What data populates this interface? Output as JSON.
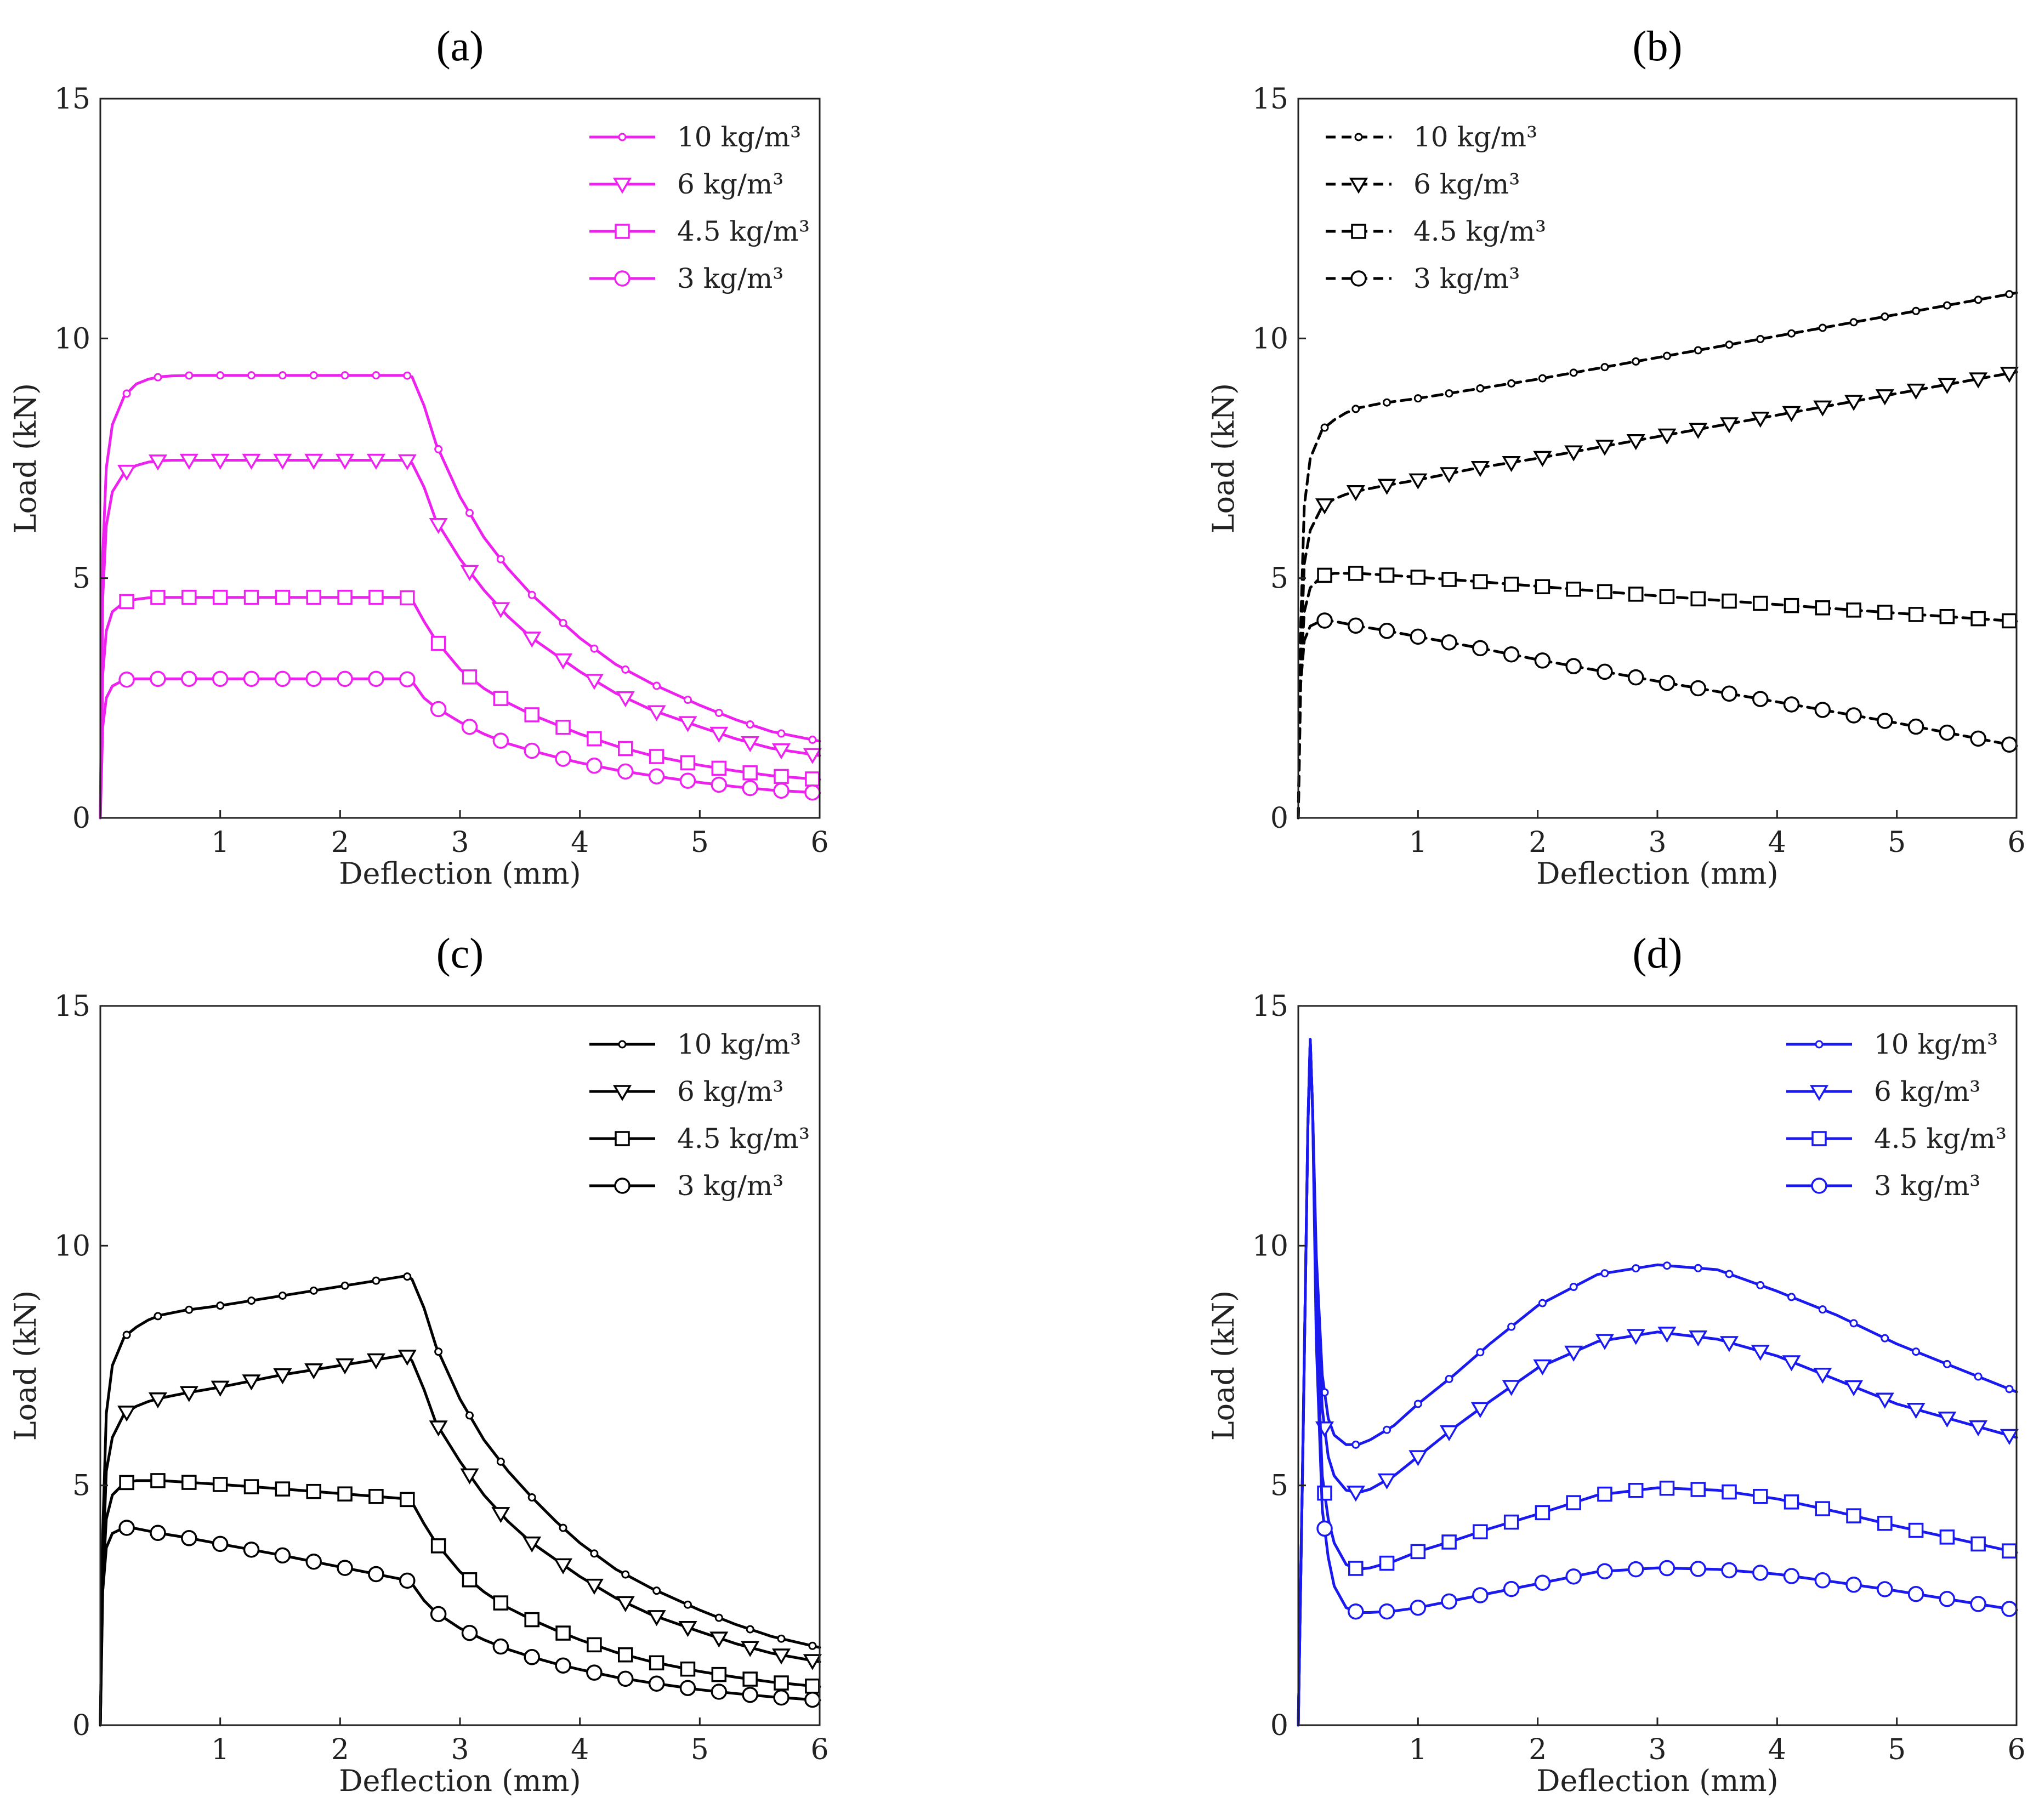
{
  "figure": {
    "panels": [
      "(a)",
      "(b)",
      "(c)",
      "(d)"
    ]
  },
  "chart_data": [
    {
      "type": "line",
      "panel_label": "(a)",
      "xlabel": "Deflection (mm)",
      "ylabel": "Load (kN)",
      "xlim": [
        0,
        6
      ],
      "ylim": [
        0,
        15
      ],
      "xticks": [
        "1",
        "2",
        "3",
        "4",
        "5",
        "6"
      ],
      "yticks": [
        "0",
        "5",
        "10",
        "15"
      ],
      "legend_position": "top-right",
      "color": "#ee22ee",
      "dashed": false,
      "series": [
        {
          "name": "10 kg/m³",
          "marker": "dot",
          "x": [
            0,
            0.02,
            0.05,
            0.1,
            0.2,
            0.3,
            0.4,
            0.5,
            0.6,
            0.8,
            1.0,
            1.5,
            2.0,
            2.5,
            2.55,
            2.6,
            2.7,
            2.8,
            3.0,
            3.2,
            3.4,
            3.6,
            3.8,
            4.0,
            4.3,
            4.6,
            5.0,
            5.3,
            5.6,
            6.0
          ],
          "y": [
            0,
            5.5,
            7.3,
            8.2,
            8.8,
            9.05,
            9.15,
            9.2,
            9.22,
            9.23,
            9.23,
            9.23,
            9.23,
            9.23,
            9.23,
            9.2,
            8.6,
            7.8,
            6.7,
            5.85,
            5.2,
            4.65,
            4.2,
            3.75,
            3.2,
            2.8,
            2.35,
            2.05,
            1.8,
            1.6
          ]
        },
        {
          "name": "6 kg/m³",
          "marker": "triangle-down",
          "x": [
            0,
            0.02,
            0.05,
            0.1,
            0.2,
            0.3,
            0.4,
            0.5,
            0.6,
            0.8,
            1.0,
            1.5,
            2.0,
            2.5,
            2.55,
            2.6,
            2.7,
            2.8,
            3.0,
            3.2,
            3.4,
            3.6,
            3.8,
            4.0,
            4.3,
            4.6,
            5.0,
            5.3,
            5.6,
            6.0
          ],
          "y": [
            0,
            4.6,
            6.1,
            6.8,
            7.2,
            7.35,
            7.42,
            7.45,
            7.46,
            7.46,
            7.46,
            7.46,
            7.46,
            7.46,
            7.46,
            7.4,
            6.9,
            6.2,
            5.4,
            4.75,
            4.2,
            3.75,
            3.4,
            3.05,
            2.6,
            2.25,
            1.9,
            1.65,
            1.45,
            1.3
          ]
        },
        {
          "name": "4.5 kg/m³",
          "marker": "square",
          "x": [
            0,
            0.02,
            0.05,
            0.1,
            0.2,
            0.3,
            0.4,
            0.5,
            0.6,
            0.8,
            1.0,
            1.5,
            2.0,
            2.5,
            2.55,
            2.6,
            2.7,
            2.8,
            3.0,
            3.2,
            3.4,
            3.6,
            3.8,
            4.0,
            4.3,
            4.6,
            5.0,
            5.3,
            5.6,
            6.0
          ],
          "y": [
            0,
            3.0,
            3.9,
            4.3,
            4.5,
            4.56,
            4.59,
            4.6,
            4.6,
            4.6,
            4.6,
            4.6,
            4.6,
            4.6,
            4.6,
            4.55,
            4.1,
            3.7,
            3.1,
            2.7,
            2.4,
            2.15,
            1.95,
            1.75,
            1.5,
            1.3,
            1.1,
            0.98,
            0.88,
            0.8
          ]
        },
        {
          "name": "3 kg/m³",
          "marker": "circle",
          "x": [
            0,
            0.02,
            0.05,
            0.1,
            0.2,
            0.3,
            0.4,
            0.5,
            0.6,
            0.8,
            1.0,
            1.5,
            2.0,
            2.5,
            2.55,
            2.6,
            2.7,
            2.8,
            3.0,
            3.2,
            3.4,
            3.6,
            3.8,
            4.0,
            4.3,
            4.6,
            5.0,
            5.3,
            5.6,
            6.0
          ],
          "y": [
            0,
            1.9,
            2.5,
            2.75,
            2.88,
            2.9,
            2.9,
            2.9,
            2.9,
            2.9,
            2.9,
            2.9,
            2.9,
            2.9,
            2.9,
            2.85,
            2.5,
            2.3,
            2.0,
            1.75,
            1.55,
            1.4,
            1.27,
            1.15,
            1.0,
            0.88,
            0.74,
            0.65,
            0.58,
            0.52
          ]
        }
      ]
    },
    {
      "type": "line",
      "panel_label": "(b)",
      "xlabel": "Deflection (mm)",
      "ylabel": "Load (kN)",
      "xlim": [
        0,
        6
      ],
      "ylim": [
        0,
        15
      ],
      "xticks": [
        "1",
        "2",
        "3",
        "4",
        "5",
        "6"
      ],
      "yticks": [
        "0",
        "5",
        "10",
        "15"
      ],
      "legend_position": "top-left",
      "color": "#000000",
      "dashed": true,
      "series": [
        {
          "name": "10 kg/m³",
          "marker": "dot",
          "x": [
            0,
            0.02,
            0.05,
            0.1,
            0.2,
            0.3,
            0.4,
            0.5,
            0.7,
            1.0,
            1.5,
            2.0,
            3.0,
            4.0,
            5.0,
            6.0
          ],
          "y": [
            0,
            4.0,
            6.5,
            7.5,
            8.1,
            8.3,
            8.45,
            8.55,
            8.65,
            8.75,
            8.95,
            9.15,
            9.6,
            10.05,
            10.5,
            10.95
          ]
        },
        {
          "name": "6 kg/m³",
          "marker": "triangle-down",
          "x": [
            0,
            0.02,
            0.05,
            0.1,
            0.2,
            0.3,
            0.4,
            0.5,
            0.7,
            1.0,
            1.5,
            2.0,
            3.0,
            4.0,
            5.0,
            6.0
          ],
          "y": [
            0,
            3.3,
            5.3,
            6.0,
            6.5,
            6.65,
            6.75,
            6.82,
            6.92,
            7.05,
            7.3,
            7.5,
            7.95,
            8.4,
            8.85,
            9.3
          ]
        },
        {
          "name": "4.5 kg/m³",
          "marker": "square",
          "x": [
            0,
            0.02,
            0.05,
            0.1,
            0.2,
            0.3,
            0.4,
            0.5,
            0.7,
            1.0,
            1.5,
            2.0,
            3.0,
            4.0,
            5.0,
            6.0
          ],
          "y": [
            0,
            3.0,
            4.3,
            4.8,
            5.05,
            5.1,
            5.1,
            5.1,
            5.07,
            5.02,
            4.93,
            4.83,
            4.63,
            4.45,
            4.27,
            4.1
          ]
        },
        {
          "name": "3 kg/m³",
          "marker": "circle",
          "x": [
            0,
            0.02,
            0.05,
            0.1,
            0.2,
            0.3,
            0.4,
            0.5,
            0.7,
            1.0,
            1.5,
            2.0,
            3.0,
            4.0,
            5.0,
            6.0
          ],
          "y": [
            0,
            2.8,
            3.7,
            4.0,
            4.12,
            4.1,
            4.05,
            4.0,
            3.92,
            3.78,
            3.55,
            3.3,
            2.85,
            2.42,
            1.98,
            1.5
          ]
        }
      ]
    },
    {
      "type": "line",
      "panel_label": "(c)",
      "xlabel": "Deflection (mm)",
      "ylabel": "Load (kN)",
      "xlim": [
        0,
        6
      ],
      "ylim": [
        0,
        15
      ],
      "xticks": [
        "1",
        "2",
        "3",
        "4",
        "5",
        "6"
      ],
      "yticks": [
        "0",
        "5",
        "10",
        "15"
      ],
      "legend_position": "top-right",
      "color": "#000000",
      "dashed": false,
      "series": [
        {
          "name": "10 kg/m³",
          "marker": "dot",
          "x": [
            0,
            0.02,
            0.05,
            0.1,
            0.2,
            0.3,
            0.4,
            0.5,
            0.7,
            1.0,
            1.5,
            2.0,
            2.5,
            2.55,
            2.6,
            2.7,
            2.8,
            3.0,
            3.2,
            3.4,
            3.6,
            3.8,
            4.0,
            4.3,
            4.6,
            5.0,
            5.3,
            5.6,
            6.0
          ],
          "y": [
            0,
            4.0,
            6.5,
            7.5,
            8.1,
            8.3,
            8.45,
            8.55,
            8.65,
            8.75,
            8.95,
            9.15,
            9.35,
            9.37,
            9.3,
            8.7,
            7.9,
            6.8,
            5.95,
            5.3,
            4.75,
            4.25,
            3.8,
            3.25,
            2.85,
            2.4,
            2.1,
            1.85,
            1.62
          ]
        },
        {
          "name": "6 kg/m³",
          "marker": "triangle-down",
          "x": [
            0,
            0.02,
            0.05,
            0.1,
            0.2,
            0.3,
            0.4,
            0.5,
            0.7,
            1.0,
            1.5,
            2.0,
            2.5,
            2.55,
            2.6,
            2.7,
            2.8,
            3.0,
            3.2,
            3.4,
            3.6,
            3.8,
            4.0,
            4.3,
            4.6,
            5.0,
            5.3,
            5.6,
            6.0
          ],
          "y": [
            0,
            3.3,
            5.3,
            6.0,
            6.5,
            6.65,
            6.75,
            6.82,
            6.92,
            7.05,
            7.3,
            7.5,
            7.7,
            7.72,
            7.6,
            7.0,
            6.3,
            5.5,
            4.8,
            4.25,
            3.8,
            3.45,
            3.1,
            2.65,
            2.3,
            1.95,
            1.7,
            1.5,
            1.32
          ]
        },
        {
          "name": "4.5 kg/m³",
          "marker": "square",
          "x": [
            0,
            0.02,
            0.05,
            0.1,
            0.2,
            0.3,
            0.4,
            0.5,
            0.7,
            1.0,
            1.5,
            2.0,
            2.5,
            2.55,
            2.6,
            2.7,
            2.8,
            3.0,
            3.2,
            3.4,
            3.6,
            3.8,
            4.0,
            4.3,
            4.6,
            5.0,
            5.3,
            5.6,
            6.0
          ],
          "y": [
            0,
            3.0,
            4.3,
            4.8,
            5.05,
            5.1,
            5.1,
            5.1,
            5.07,
            5.02,
            4.93,
            4.83,
            4.73,
            4.72,
            4.65,
            4.2,
            3.8,
            3.2,
            2.78,
            2.45,
            2.2,
            1.98,
            1.78,
            1.52,
            1.32,
            1.12,
            1.0,
            0.9,
            0.8
          ]
        },
        {
          "name": "3 kg/m³",
          "marker": "circle",
          "x": [
            0,
            0.02,
            0.05,
            0.1,
            0.2,
            0.3,
            0.4,
            0.5,
            0.7,
            1.0,
            1.5,
            2.0,
            2.5,
            2.55,
            2.6,
            2.7,
            2.8,
            3.0,
            3.2,
            3.4,
            3.6,
            3.8,
            4.0,
            4.3,
            4.6,
            5.0,
            5.3,
            5.6,
            6.0
          ],
          "y": [
            0,
            2.8,
            3.7,
            4.0,
            4.12,
            4.1,
            4.05,
            4.0,
            3.92,
            3.78,
            3.55,
            3.3,
            3.05,
            3.03,
            2.95,
            2.6,
            2.35,
            2.02,
            1.78,
            1.58,
            1.42,
            1.28,
            1.16,
            1.0,
            0.88,
            0.74,
            0.66,
            0.59,
            0.52
          ]
        }
      ]
    },
    {
      "type": "line",
      "panel_label": "(d)",
      "xlabel": "Deflection (mm)",
      "ylabel": "Load (kN)",
      "xlim": [
        0,
        6
      ],
      "ylim": [
        0,
        15
      ],
      "xticks": [
        "1",
        "2",
        "3",
        "4",
        "5",
        "6"
      ],
      "yticks": [
        "0",
        "5",
        "10",
        "15"
      ],
      "legend_position": "top-right",
      "color": "#1a1aee",
      "dashed": false,
      "series": [
        {
          "name": "10 kg/m³",
          "marker": "dot",
          "x": [
            0,
            0.04,
            0.08,
            0.1,
            0.12,
            0.15,
            0.2,
            0.25,
            0.3,
            0.4,
            0.5,
            0.6,
            0.8,
            1.0,
            1.3,
            1.6,
            2.0,
            2.5,
            3.0,
            3.5,
            4.0,
            4.5,
            5.0,
            5.5,
            6.0
          ],
          "y": [
            0,
            6.0,
            12.5,
            14.3,
            12.8,
            9.8,
            7.3,
            6.4,
            6.05,
            5.85,
            5.85,
            5.95,
            6.25,
            6.7,
            7.3,
            7.95,
            8.75,
            9.4,
            9.6,
            9.5,
            9.05,
            8.55,
            7.95,
            7.45,
            6.95
          ]
        },
        {
          "name": "6 kg/m³",
          "marker": "triangle-down",
          "x": [
            0,
            0.04,
            0.08,
            0.1,
            0.12,
            0.15,
            0.2,
            0.25,
            0.3,
            0.4,
            0.5,
            0.6,
            0.8,
            1.0,
            1.3,
            1.6,
            2.0,
            2.5,
            3.0,
            3.5,
            4.0,
            4.5,
            5.0,
            5.5,
            6.0
          ],
          "y": [
            0,
            6.0,
            12.5,
            14.3,
            12.8,
            9.3,
            6.6,
            5.6,
            5.2,
            4.9,
            4.85,
            4.92,
            5.2,
            5.6,
            6.2,
            6.75,
            7.45,
            8.0,
            8.2,
            8.05,
            7.7,
            7.2,
            6.7,
            6.35,
            6.0
          ]
        },
        {
          "name": "4.5 kg/m³",
          "marker": "square",
          "x": [
            0,
            0.04,
            0.08,
            0.1,
            0.12,
            0.15,
            0.2,
            0.25,
            0.3,
            0.4,
            0.5,
            0.6,
            0.8,
            1.0,
            1.3,
            1.6,
            2.0,
            2.5,
            3.0,
            3.5,
            4.0,
            4.5,
            5.0,
            5.5,
            6.0
          ],
          "y": [
            0,
            6.0,
            12.5,
            14.3,
            12.8,
            8.5,
            5.2,
            4.3,
            3.8,
            3.35,
            3.25,
            3.28,
            3.42,
            3.62,
            3.85,
            4.1,
            4.4,
            4.8,
            4.95,
            4.9,
            4.72,
            4.45,
            4.15,
            3.88,
            3.6
          ]
        },
        {
          "name": "3 kg/m³",
          "marker": "circle",
          "x": [
            0,
            0.04,
            0.08,
            0.1,
            0.12,
            0.15,
            0.2,
            0.25,
            0.3,
            0.4,
            0.5,
            0.6,
            0.8,
            1.0,
            1.3,
            1.6,
            2.0,
            2.5,
            3.0,
            3.5,
            4.0,
            4.5,
            5.0,
            5.5,
            6.0
          ],
          "y": [
            0,
            6.0,
            12.5,
            14.3,
            12.8,
            8.0,
            4.5,
            3.5,
            2.9,
            2.45,
            2.35,
            2.35,
            2.38,
            2.45,
            2.6,
            2.75,
            2.95,
            3.2,
            3.28,
            3.25,
            3.15,
            2.98,
            2.8,
            2.6,
            2.4
          ]
        }
      ]
    }
  ]
}
